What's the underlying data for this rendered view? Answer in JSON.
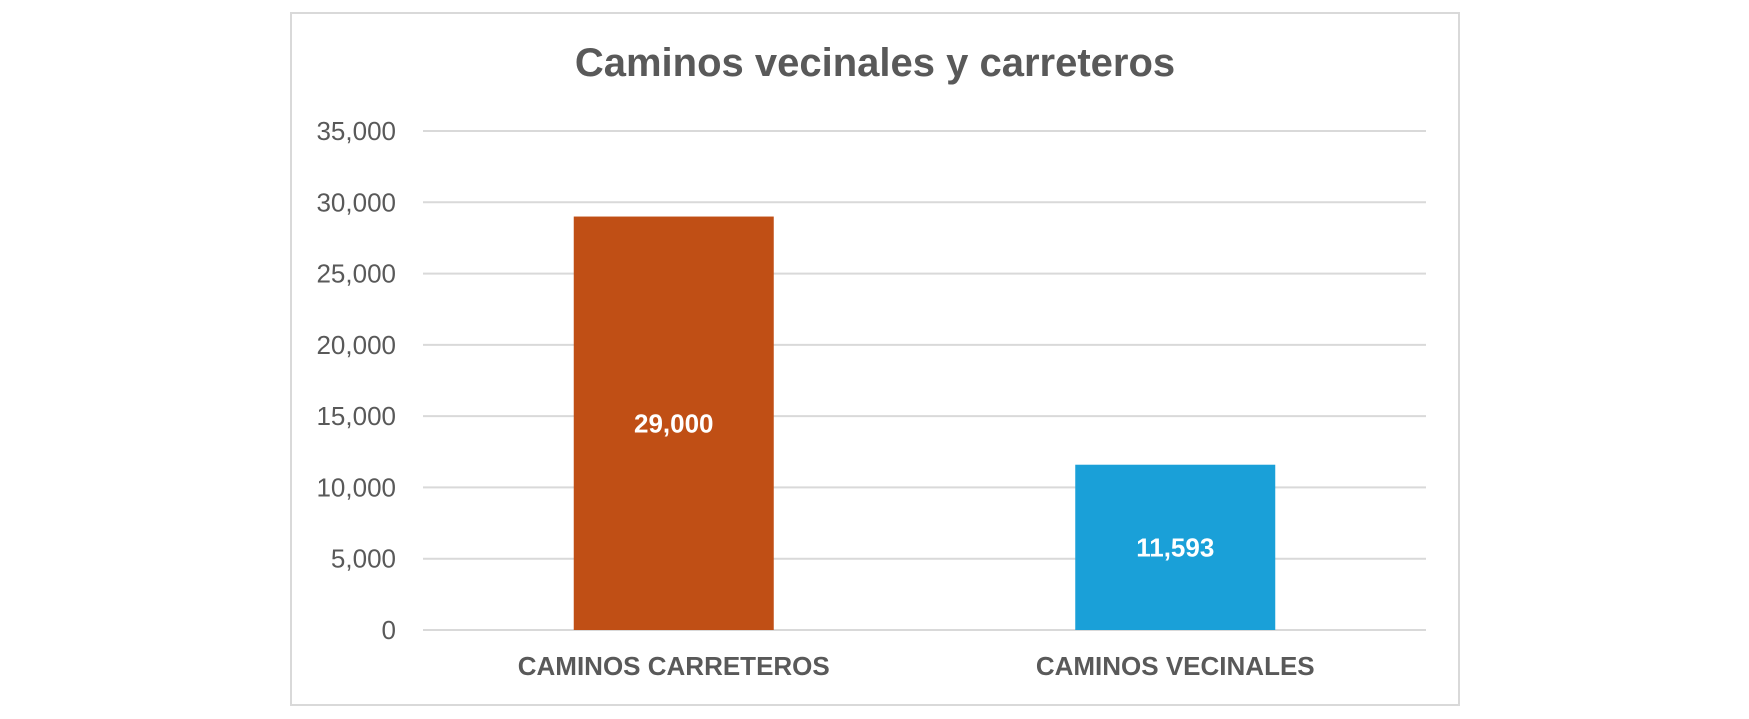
{
  "chart_data": {
    "type": "bar",
    "title": "Caminos vecinales y carreteros",
    "categories": [
      "CAMINOS CARRETEROS",
      "CAMINOS VECINALES"
    ],
    "values": [
      29000,
      11593
    ],
    "data_labels": [
      "29,000",
      "11,593"
    ],
    "bar_colors": [
      "#c04f15",
      "#1aa0d8"
    ],
    "ylim": [
      0,
      35000
    ],
    "yticks": [
      0,
      5000,
      10000,
      15000,
      20000,
      25000,
      30000,
      35000
    ],
    "ytick_labels": [
      "0",
      "5,000",
      "10,000",
      "15,000",
      "20,000",
      "25,000",
      "30,000",
      "35,000"
    ],
    "grid": true,
    "legend": "none",
    "xlabel": "",
    "ylabel": ""
  }
}
